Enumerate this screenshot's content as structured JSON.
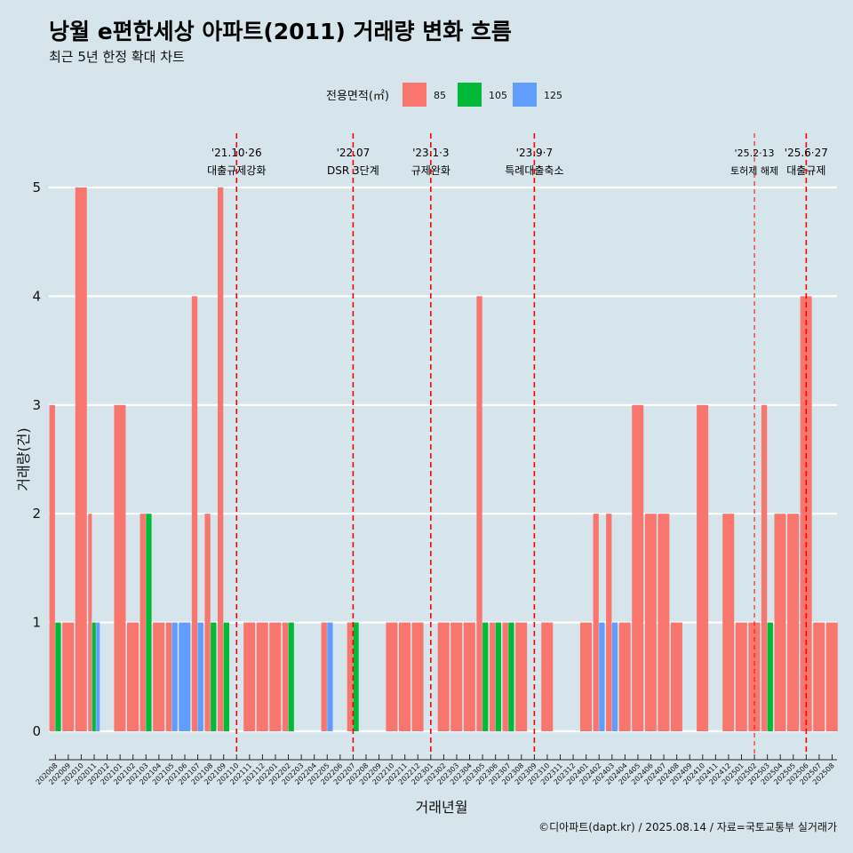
{
  "title": "낭월 e편한세상 아파트(2011) 거래량 변화 흐름",
  "subtitle": "최근 5년 한정 확대 차트",
  "caption": "©디아파트(dapt.kr) / 2025.08.14 / 자료=국토교통부 실거래가",
  "legend": {
    "title": "전용면적(㎡)",
    "items": [
      {
        "label": "85",
        "color": "#f8766d"
      },
      {
        "label": "105",
        "color": "#00ba38"
      },
      {
        "label": "125",
        "color": "#619cff"
      }
    ]
  },
  "annotations": [
    {
      "date_line": "'21.10·26",
      "label": "대출규제강화",
      "month": "202110",
      "style": "dashed-bold"
    },
    {
      "date_line": "'22.07",
      "label": "DSR 3단계",
      "month": "202207",
      "style": "dashed-bold"
    },
    {
      "date_line": "'23.1·3",
      "label": "규제완화",
      "month": "202301",
      "style": "dashed-bold"
    },
    {
      "date_line": "'23.9·7",
      "label": "특례대출축소",
      "month": "202309",
      "style": "dashed-bold"
    },
    {
      "date_line": "'25.2·13",
      "label": "토허제 해제",
      "month": "202502",
      "style": "dashed-thin"
    },
    {
      "date_line": "'25.6·27",
      "label": "대출규제",
      "month": "202506",
      "style": "dashed-bold"
    }
  ],
  "chart_data": {
    "type": "bar",
    "xlabel": "거래년월",
    "ylabel": "거래량(건)",
    "ylim": [
      0,
      5
    ],
    "yticks": [
      0,
      1,
      2,
      3,
      4,
      5
    ],
    "grid": true,
    "legend_position": "top",
    "categories": [
      "202008",
      "202009",
      "202010",
      "202011",
      "202012",
      "202101",
      "202102",
      "202103",
      "202104",
      "202105",
      "202106",
      "202107",
      "202108",
      "202109",
      "202110",
      "202111",
      "202112",
      "202201",
      "202202",
      "202203",
      "202204",
      "202205",
      "202206",
      "202207",
      "202208",
      "202209",
      "202210",
      "202211",
      "202212",
      "202301",
      "202302",
      "202303",
      "202304",
      "202305",
      "202306",
      "202307",
      "202308",
      "202309",
      "202310",
      "202311",
      "202312",
      "202401",
      "202402",
      "202403",
      "202404",
      "202405",
      "202406",
      "202407",
      "202408",
      "202409",
      "202410",
      "202411",
      "202412",
      "202501",
      "202502",
      "202503",
      "202504",
      "202505",
      "202506",
      "202507",
      "202508"
    ],
    "series": [
      {
        "name": "85",
        "values": [
          3,
          1,
          5,
          2,
          0,
          3,
          1,
          2,
          1,
          1,
          0,
          4,
          2,
          5,
          0,
          1,
          1,
          1,
          1,
          0,
          0,
          1,
          0,
          1,
          0,
          0,
          1,
          1,
          1,
          0,
          1,
          1,
          1,
          4,
          1,
          1,
          1,
          0,
          1,
          0,
          0,
          1,
          2,
          2,
          1,
          3,
          2,
          2,
          1,
          0,
          3,
          0,
          2,
          1,
          1,
          3,
          2,
          2,
          4,
          1,
          1
        ]
      },
      {
        "name": "105",
        "values": [
          1,
          0,
          0,
          1,
          0,
          0,
          0,
          2,
          0,
          0,
          0,
          0,
          1,
          1,
          0,
          0,
          0,
          0,
          1,
          0,
          0,
          0,
          0,
          1,
          0,
          0,
          0,
          0,
          0,
          0,
          0,
          0,
          0,
          1,
          1,
          1,
          0,
          0,
          0,
          0,
          0,
          0,
          0,
          0,
          0,
          0,
          0,
          0,
          0,
          0,
          0,
          0,
          0,
          0,
          0,
          1,
          0,
          0,
          0,
          0,
          0
        ]
      },
      {
        "name": "125",
        "values": [
          0,
          0,
          0,
          1,
          0,
          0,
          0,
          0,
          0,
          1,
          1,
          1,
          0,
          0,
          0,
          0,
          0,
          0,
          0,
          0,
          0,
          1,
          0,
          0,
          0,
          0,
          0,
          0,
          0,
          0,
          0,
          0,
          0,
          0,
          0,
          0,
          0,
          0,
          0,
          0,
          0,
          0,
          1,
          1,
          0,
          0,
          0,
          0,
          0,
          0,
          0,
          0,
          0,
          0,
          0,
          0,
          0,
          0,
          0,
          0,
          0
        ]
      }
    ]
  }
}
